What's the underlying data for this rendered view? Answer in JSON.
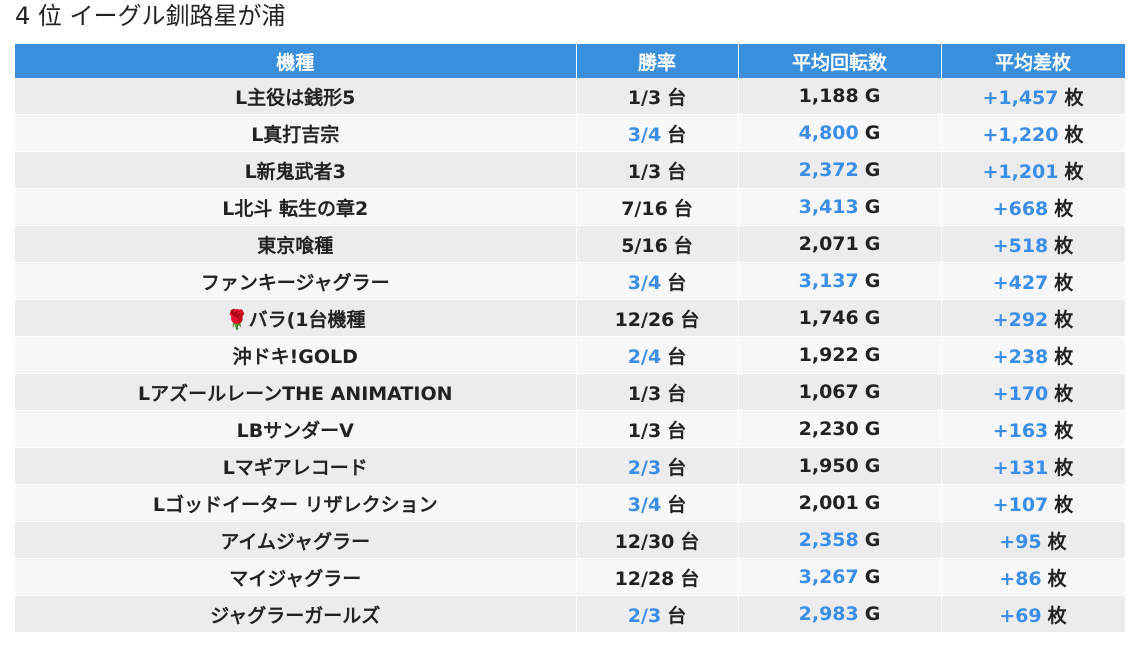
{
  "header": {
    "title": "4 位 イーグル釧路星が浦"
  },
  "table": {
    "columns": [
      "機種",
      "勝率",
      "平均回転数",
      "平均差枚"
    ],
    "rows": [
      [
        "L主役は銭形5",
        {
          "text": "1/3",
          "unit": "台",
          "color": "#222222"
        },
        {
          "text": "1,188",
          "unit": "G",
          "color": "#222222"
        },
        {
          "text": "+1,457",
          "unit": "枚",
          "color": "#3a8ee6"
        }
      ],
      [
        "L真打吉宗",
        {
          "text": "3/4",
          "unit": "台",
          "color": "#3a8ee6"
        },
        {
          "text": "4,800",
          "unit": "G",
          "color": "#3a8ee6"
        },
        {
          "text": "+1,220",
          "unit": "枚",
          "color": "#3a8ee6"
        }
      ],
      [
        "L新鬼武者3",
        {
          "text": "1/3",
          "unit": "台",
          "color": "#222222"
        },
        {
          "text": "2,372",
          "unit": "G",
          "color": "#3a8ee6"
        },
        {
          "text": "+1,201",
          "unit": "枚",
          "color": "#3a8ee6"
        }
      ],
      [
        "L北斗 転生の章2",
        {
          "text": "7/16",
          "unit": "台",
          "color": "#222222"
        },
        {
          "text": "3,413",
          "unit": "G",
          "color": "#3a8ee6"
        },
        {
          "text": "+668",
          "unit": "枚",
          "color": "#3a8ee6"
        }
      ],
      [
        "東京喰種",
        {
          "text": "5/16",
          "unit": "台",
          "color": "#222222"
        },
        {
          "text": "2,071",
          "unit": "G",
          "color": "#222222"
        },
        {
          "text": "+518",
          "unit": "枚",
          "color": "#3a8ee6"
        }
      ],
      [
        "ファンキージャグラー",
        {
          "text": "3/4",
          "unit": "台",
          "color": "#3a8ee6"
        },
        {
          "text": "3,137",
          "unit": "G",
          "color": "#3a8ee6"
        },
        {
          "text": "+427",
          "unit": "枚",
          "color": "#3a8ee6"
        }
      ],
      [
        "🌹バラ(1台機種",
        {
          "text": "12/26",
          "unit": "台",
          "color": "#222222"
        },
        {
          "text": "1,746",
          "unit": "G",
          "color": "#222222"
        },
        {
          "text": "+292",
          "unit": "枚",
          "color": "#3a8ee6"
        }
      ],
      [
        "沖ドキ!GOLD",
        {
          "text": "2/4",
          "unit": "台",
          "color": "#3a8ee6"
        },
        {
          "text": "1,922",
          "unit": "G",
          "color": "#222222"
        },
        {
          "text": "+238",
          "unit": "枚",
          "color": "#3a8ee6"
        }
      ],
      [
        "LアズールレーンTHE ANIMATION",
        {
          "text": "1/3",
          "unit": "台",
          "color": "#222222"
        },
        {
          "text": "1,067",
          "unit": "G",
          "color": "#222222"
        },
        {
          "text": "+170",
          "unit": "枚",
          "color": "#3a8ee6"
        }
      ],
      [
        "LBサンダーV",
        {
          "text": "1/3",
          "unit": "台",
          "color": "#222222"
        },
        {
          "text": "2,230",
          "unit": "G",
          "color": "#222222"
        },
        {
          "text": "+163",
          "unit": "枚",
          "color": "#3a8ee6"
        }
      ],
      [
        "Lマギアレコード",
        {
          "text": "2/3",
          "unit": "台",
          "color": "#3a8ee6"
        },
        {
          "text": "1,950",
          "unit": "G",
          "color": "#222222"
        },
        {
          "text": "+131",
          "unit": "枚",
          "color": "#3a8ee6"
        }
      ],
      [
        "Lゴッドイーター リザレクション",
        {
          "text": "3/4",
          "unit": "台",
          "color": "#3a8ee6"
        },
        {
          "text": "2,001",
          "unit": "G",
          "color": "#222222"
        },
        {
          "text": "+107",
          "unit": "枚",
          "color": "#3a8ee6"
        }
      ],
      [
        "アイムジャグラー",
        {
          "text": "12/30",
          "unit": "台",
          "color": "#222222"
        },
        {
          "text": "2,358",
          "unit": "G",
          "color": "#3a8ee6"
        },
        {
          "text": "+95",
          "unit": "枚",
          "color": "#3a8ee6"
        }
      ],
      [
        "マイジャグラー",
        {
          "text": "12/28",
          "unit": "台",
          "color": "#222222"
        },
        {
          "text": "3,267",
          "unit": "G",
          "color": "#3a8ee6"
        },
        {
          "text": "+86",
          "unit": "枚",
          "color": "#3a8ee6"
        }
      ],
      [
        "ジャグラーガールズ",
        {
          "text": "2/3",
          "unit": "台",
          "color": "#3a8ee6"
        },
        {
          "text": "2,983",
          "unit": "G",
          "color": "#3a8ee6"
        },
        {
          "text": "+69",
          "unit": "枚",
          "color": "#3a8ee6"
        }
      ]
    ]
  }
}
